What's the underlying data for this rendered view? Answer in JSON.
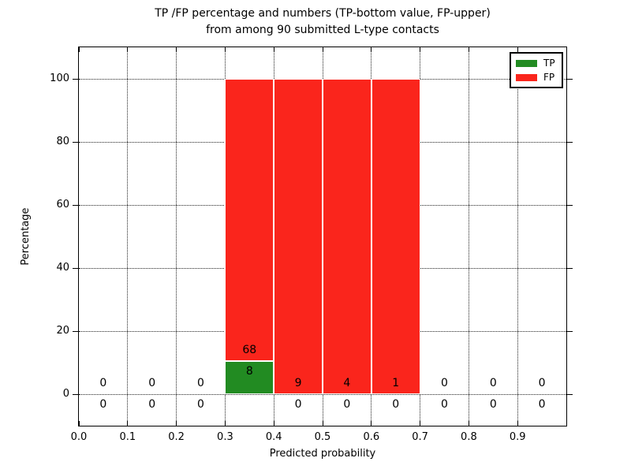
{
  "title": {
    "line1": "TP /FP percentage and numbers (TP-bottom value, FP-upper)",
    "line2": "from among 90 submitted L-type contacts"
  },
  "axes": {
    "xlabel": "Predicted probability",
    "ylabel": "Percentage",
    "x_tick_labels": [
      "0.0",
      "0.1",
      "0.2",
      "0.3",
      "0.4",
      "0.5",
      "0.6",
      "0.7",
      "0.8",
      "0.9"
    ],
    "y_tick_labels": [
      "0",
      "20",
      "40",
      "60",
      "80",
      "100"
    ]
  },
  "legend": {
    "position": "upper right",
    "items": [
      {
        "label": "TP",
        "color": "#228b22"
      },
      {
        "label": "FP",
        "color": "#fa251c"
      }
    ]
  },
  "chart_data": {
    "type": "bar",
    "stacked": true,
    "title": "TP /FP percentage and numbers (TP-bottom value, FP-upper) from among 90 submitted L-type contacts",
    "total_submitted": 90,
    "xlabel": "Predicted probability",
    "ylabel": "Percentage",
    "xlim": [
      0.0,
      1.0
    ],
    "ylim": [
      -10,
      110
    ],
    "grid": true,
    "legend_position": "upper right",
    "x_bin_edges": [
      0.0,
      0.1,
      0.2,
      0.3,
      0.4,
      0.5,
      0.6,
      0.7,
      0.8,
      0.9,
      1.0
    ],
    "series": [
      {
        "name": "TP",
        "color": "#228b22",
        "counts": [
          0,
          0,
          0,
          8,
          0,
          0,
          0,
          0,
          0,
          0
        ],
        "percents": [
          0,
          0,
          0,
          10.5,
          0,
          0,
          0,
          0,
          0,
          0
        ]
      },
      {
        "name": "FP",
        "color": "#fa251c",
        "counts": [
          0,
          0,
          0,
          68,
          9,
          4,
          1,
          0,
          0,
          0
        ],
        "percents": [
          0,
          0,
          0,
          89.5,
          100,
          100,
          100,
          0,
          0,
          0
        ]
      }
    ],
    "bar_edge_color": "#ffffff"
  }
}
